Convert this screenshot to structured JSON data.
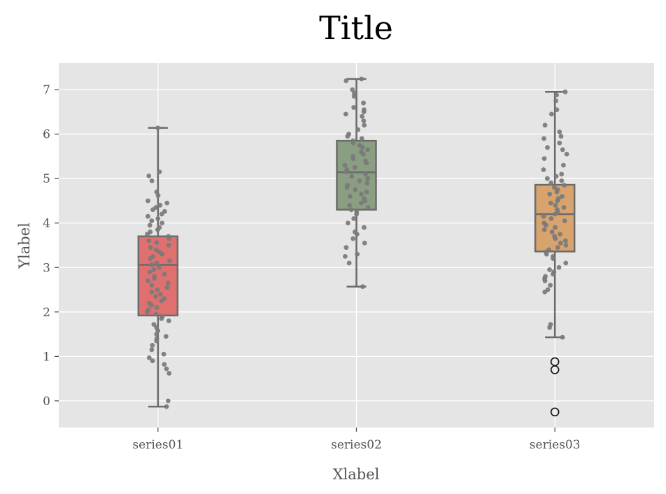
{
  "chart_data": {
    "type": "box",
    "title": "Title",
    "xlabel": "Xlabel",
    "ylabel": "Ylabel",
    "categories": [
      "series01",
      "series02",
      "series03"
    ],
    "ylim": [
      -0.6,
      7.6
    ],
    "yticks": [
      0,
      1,
      2,
      3,
      4,
      5,
      6,
      7
    ],
    "grid": true,
    "background": "#e5e5e5",
    "series": [
      {
        "category": "series01",
        "color": "#e07070",
        "whisker_low": -0.13,
        "q1": 1.92,
        "median": 3.06,
        "q3": 3.7,
        "whisker_high": 6.14,
        "outliers": [],
        "points": [
          6.14,
          5.15,
          5.06,
          4.95,
          4.7,
          4.62,
          4.5,
          4.45,
          4.4,
          4.35,
          4.3,
          4.26,
          4.2,
          4.15,
          4.1,
          4.05,
          4.0,
          3.95,
          3.9,
          3.85,
          3.8,
          3.75,
          3.7,
          3.65,
          3.6,
          3.56,
          3.5,
          3.45,
          3.4,
          3.35,
          3.3,
          3.25,
          3.2,
          3.15,
          3.1,
          3.06,
          3.0,
          2.95,
          2.9,
          2.85,
          2.8,
          2.75,
          2.7,
          2.65,
          2.6,
          2.55,
          2.5,
          2.45,
          2.4,
          2.35,
          2.3,
          2.25,
          2.2,
          2.15,
          2.1,
          2.05,
          2.0,
          1.95,
          1.9,
          1.85,
          1.8,
          1.72,
          1.65,
          1.58,
          1.5,
          1.45,
          1.4,
          1.35,
          1.25,
          1.15,
          1.05,
          0.97,
          0.9,
          0.82,
          0.72,
          0.62,
          0.0,
          -0.13
        ]
      },
      {
        "category": "series02",
        "color": "#8a9e82",
        "whisker_low": 2.57,
        "q1": 4.3,
        "median": 5.14,
        "q3": 5.85,
        "whisker_high": 7.24,
        "outliers": [],
        "points": [
          7.24,
          7.2,
          7.0,
          6.92,
          6.85,
          6.7,
          6.6,
          6.55,
          6.5,
          6.45,
          6.4,
          6.3,
          6.2,
          6.1,
          6.0,
          5.95,
          5.9,
          5.85,
          5.8,
          5.75,
          5.7,
          5.65,
          5.6,
          5.55,
          5.5,
          5.45,
          5.4,
          5.35,
          5.3,
          5.25,
          5.2,
          5.15,
          5.1,
          5.05,
          5.0,
          4.95,
          4.9,
          4.85,
          4.8,
          4.75,
          4.7,
          4.65,
          4.6,
          4.55,
          4.5,
          4.45,
          4.4,
          4.35,
          4.3,
          4.25,
          4.2,
          4.1,
          4.0,
          3.9,
          3.8,
          3.75,
          3.65,
          3.55,
          3.45,
          3.3,
          3.25,
          3.1,
          2.57
        ]
      },
      {
        "category": "series03",
        "color": "#d9a36d",
        "whisker_low": 1.43,
        "q1": 3.36,
        "median": 4.2,
        "q3": 4.86,
        "whisker_high": 6.95,
        "outliers": [
          0.88,
          0.7,
          -0.25
        ],
        "points": [
          6.95,
          6.88,
          6.75,
          6.55,
          6.45,
          6.2,
          6.05,
          5.95,
          5.9,
          5.8,
          5.7,
          5.65,
          5.55,
          5.45,
          5.3,
          5.2,
          5.1,
          5.05,
          5.0,
          4.95,
          4.9,
          4.85,
          4.8,
          4.75,
          4.7,
          4.65,
          4.6,
          4.55,
          4.5,
          4.45,
          4.4,
          4.35,
          4.3,
          4.25,
          4.2,
          4.15,
          4.1,
          4.05,
          4.0,
          3.95,
          3.9,
          3.85,
          3.8,
          3.75,
          3.7,
          3.65,
          3.6,
          3.55,
          3.5,
          3.45,
          3.4,
          3.35,
          3.3,
          3.25,
          3.2,
          3.1,
          3.0,
          2.95,
          2.9,
          2.85,
          2.8,
          2.75,
          2.7,
          2.6,
          2.5,
          2.45,
          1.72,
          1.65,
          1.43
        ]
      }
    ]
  }
}
